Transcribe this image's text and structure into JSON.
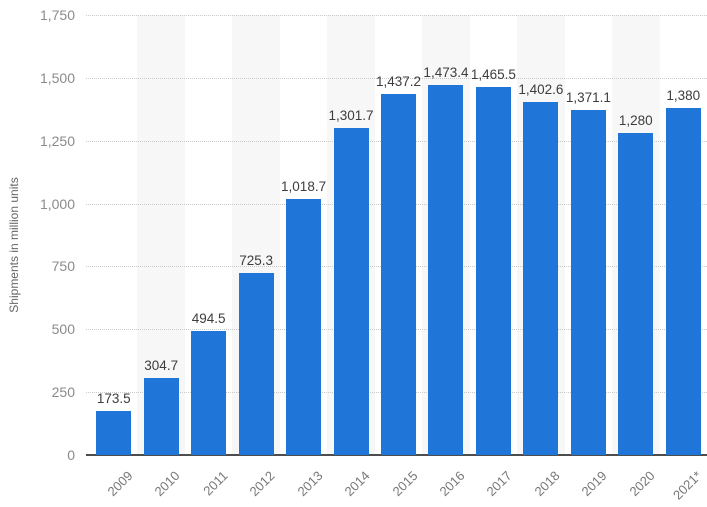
{
  "chart_data": {
    "type": "bar",
    "title": "",
    "xlabel": "",
    "ylabel": "Shipments in million units",
    "categories": [
      "2009",
      "2010",
      "2011",
      "2012",
      "2013",
      "2014",
      "2015",
      "2016",
      "2017",
      "2018",
      "2019",
      "2020",
      "2021*"
    ],
    "values": [
      173.5,
      304.7,
      494.5,
      725.3,
      1018.7,
      1301.7,
      1437.2,
      1473.4,
      1465.5,
      1402.6,
      1371.1,
      1280,
      1380
    ],
    "value_labels": [
      "173.5",
      "304.7",
      "494.5",
      "725.3",
      "1,018.7",
      "1,301.7",
      "1,437.2",
      "1,473.4",
      "1,465.5",
      "1,402.6",
      "1,371.1",
      "1,280",
      "1,380"
    ],
    "y_ticks": [
      "0",
      "250",
      "500",
      "750",
      "1,000",
      "1,250",
      "1,500",
      "1,750"
    ],
    "ylim": [
      0,
      1750
    ],
    "grid": "horizontal-dotted",
    "legend_position": "none",
    "bar_color": "#2076d8",
    "stripe_color": "#f7f7f7",
    "axis_line_color": "#4d4d4d",
    "label_color": "#3d3d3d",
    "tick_color": "#8b8b8b"
  }
}
